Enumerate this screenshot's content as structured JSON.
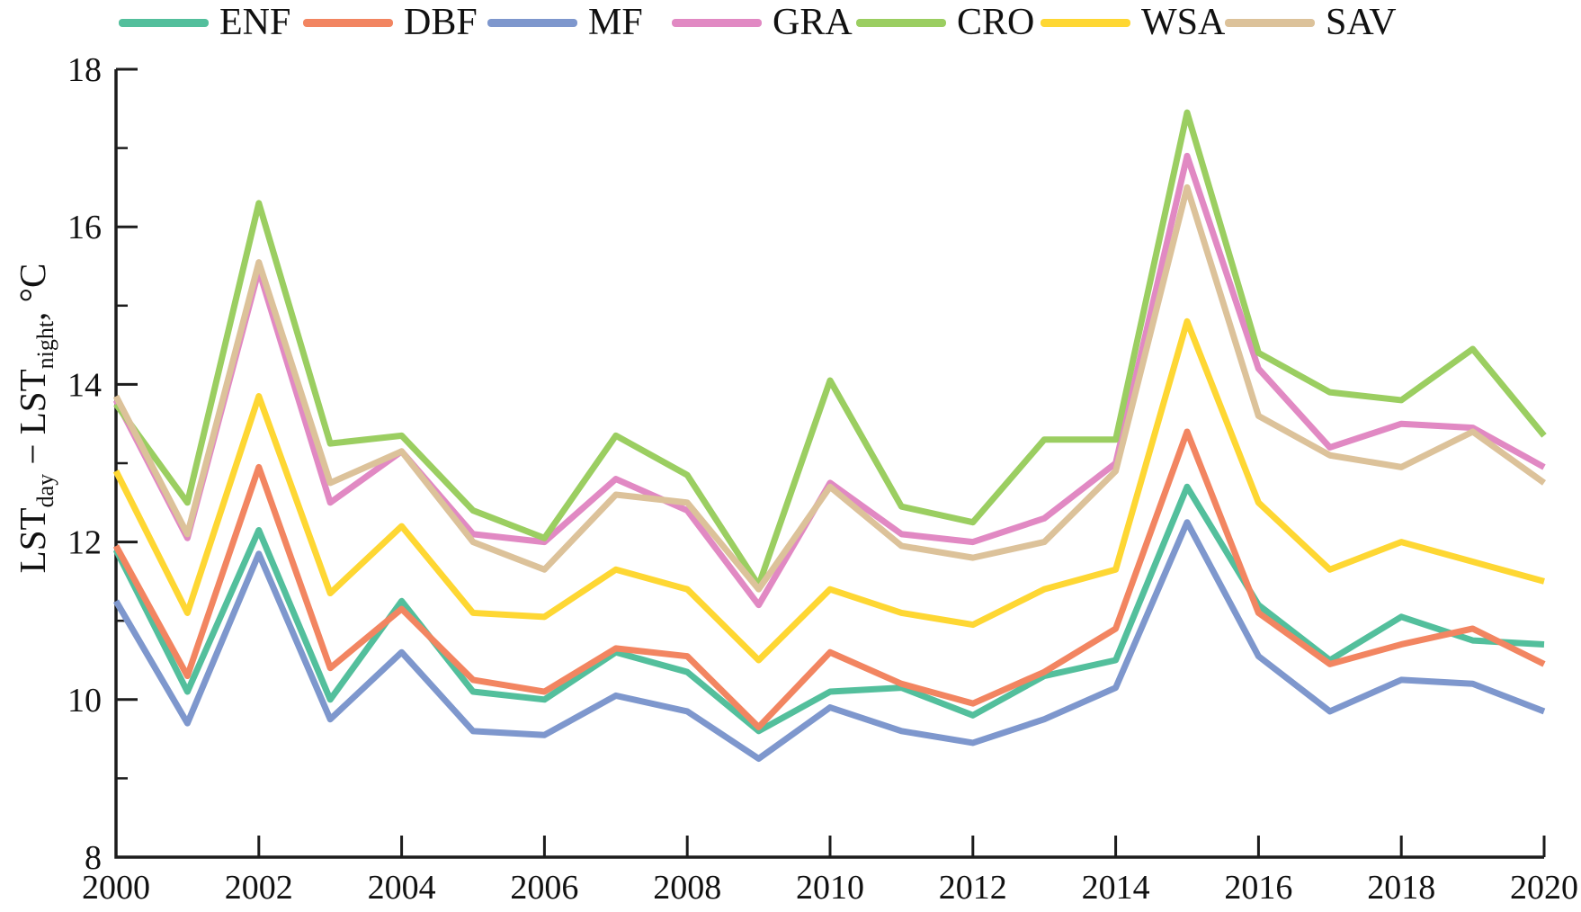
{
  "y_axis_label": {
    "t1": "LST",
    "s1": "day",
    "t2": " − LST",
    "s2": "night",
    "t3": ", °C"
  },
  "axis": {
    "color": "#1c1c1c",
    "tick_label_color": "#111111"
  },
  "chart_data": {
    "type": "line",
    "title": "",
    "xlabel": "",
    "ylabel": "LST_day − LST_night, °C",
    "grid": false,
    "legend_position": "top",
    "xlim": [
      2000,
      2020
    ],
    "ylim": [
      8,
      18
    ],
    "x_ticks": [
      2000,
      2002,
      2004,
      2006,
      2008,
      2010,
      2012,
      2014,
      2016,
      2018,
      2020
    ],
    "y_ticks": [
      8,
      10,
      12,
      14,
      16,
      18
    ],
    "x": [
      2000,
      2001,
      2002,
      2003,
      2004,
      2005,
      2006,
      2007,
      2008,
      2009,
      2010,
      2011,
      2012,
      2013,
      2014,
      2015,
      2016,
      2017,
      2018,
      2019,
      2020
    ],
    "series": [
      {
        "name": "ENF",
        "color": "#53BF9C",
        "values": [
          11.9,
          10.1,
          12.15,
          10.0,
          11.25,
          10.1,
          10.0,
          10.6,
          10.35,
          9.6,
          10.1,
          10.15,
          9.8,
          10.3,
          10.5,
          12.7,
          11.2,
          10.5,
          11.05,
          10.75,
          10.7
        ]
      },
      {
        "name": "DBF",
        "color": "#F28561",
        "values": [
          11.95,
          10.3,
          12.95,
          10.4,
          11.15,
          10.25,
          10.1,
          10.65,
          10.55,
          9.65,
          10.6,
          10.2,
          9.95,
          10.35,
          10.9,
          13.4,
          11.1,
          10.45,
          10.7,
          10.9,
          10.45
        ]
      },
      {
        "name": "MF",
        "color": "#7E97CD",
        "values": [
          11.25,
          9.7,
          11.85,
          9.75,
          10.6,
          9.6,
          9.55,
          10.05,
          9.85,
          9.25,
          9.9,
          9.6,
          9.45,
          9.75,
          10.15,
          12.25,
          10.55,
          9.85,
          10.25,
          10.2,
          9.85
        ]
      },
      {
        "name": "GRA",
        "color": "#E189C3",
        "values": [
          13.8,
          12.05,
          15.45,
          12.5,
          13.15,
          12.1,
          12.0,
          12.8,
          12.4,
          11.2,
          12.75,
          12.1,
          12.0,
          12.3,
          13.0,
          16.9,
          14.2,
          13.2,
          13.5,
          13.45,
          12.95
        ]
      },
      {
        "name": "CRO",
        "color": "#9BCE61",
        "values": [
          13.75,
          12.5,
          16.3,
          13.25,
          13.35,
          12.4,
          12.05,
          13.35,
          12.85,
          11.45,
          14.05,
          12.45,
          12.25,
          13.3,
          13.3,
          17.45,
          14.4,
          13.9,
          13.8,
          14.45,
          13.35
        ]
      },
      {
        "name": "WSA",
        "color": "#FED733",
        "values": [
          12.9,
          11.1,
          13.85,
          11.35,
          12.2,
          11.1,
          11.05,
          11.65,
          11.4,
          10.5,
          11.4,
          11.1,
          10.95,
          11.4,
          11.65,
          14.8,
          12.5,
          11.65,
          12.0,
          11.75,
          11.5
        ]
      },
      {
        "name": "SAV",
        "color": "#DCC29A",
        "values": [
          13.85,
          12.1,
          15.55,
          12.75,
          13.15,
          12.0,
          11.65,
          12.6,
          12.5,
          11.4,
          12.7,
          11.95,
          11.8,
          12.0,
          12.9,
          16.5,
          13.6,
          13.1,
          12.95,
          13.4,
          12.75
        ]
      }
    ]
  }
}
